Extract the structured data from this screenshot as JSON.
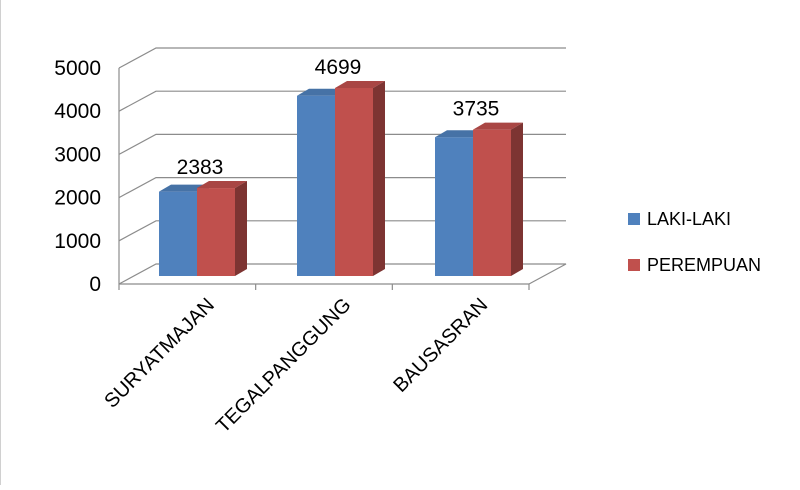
{
  "chart_data": {
    "type": "bar",
    "title": "",
    "xlabel": "",
    "ylabel": "",
    "categories": [
      "SURYATMAJAN",
      "TEGALPANGGUNG",
      "BAUSASRAN"
    ],
    "series": [
      {
        "name": "LAKI-LAKI",
        "values": [
          2300,
          4520,
          3560
        ],
        "color": "#4F81BD"
      },
      {
        "name": "PEREMPUAN",
        "values": [
          2383,
          4699,
          3735
        ],
        "color": "#C0504D"
      }
    ],
    "data_labels": [
      "2383",
      "4699",
      "3735"
    ],
    "data_label_series": "PEREMPUAN",
    "ylim": [
      0,
      5000
    ],
    "yticks": [
      0,
      1000,
      2000,
      3000,
      4000,
      5000
    ],
    "grid": true,
    "legend_position": "right",
    "style": "3d-clustered-column"
  }
}
